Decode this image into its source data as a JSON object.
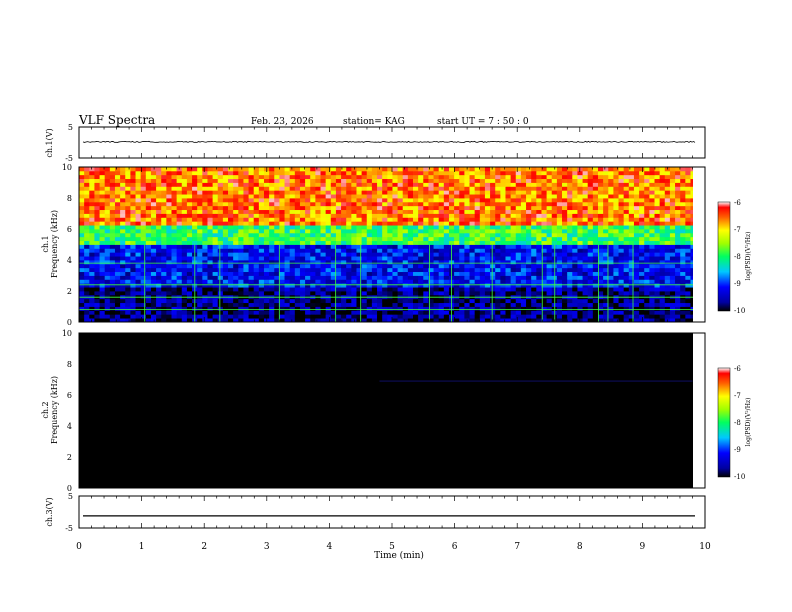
{
  "header": {
    "title": "VLF Spectra",
    "date": "Feb. 23, 2026",
    "station": "station= KAG",
    "start": "start  UT =   7 : 50 : 0"
  },
  "chart_data": [
    {
      "type": "line",
      "name": "ch1-waveform",
      "ylabel": "ch.1(V)",
      "ylim": [
        -5,
        5
      ],
      "yticks": [
        "5",
        "-5"
      ],
      "xlim": [
        0,
        10
      ],
      "series": [
        {
          "name": "ch.1",
          "level": 0.2,
          "noise": 0.35
        }
      ]
    },
    {
      "type": "heatmap",
      "name": "ch1-spectrogram",
      "ylabel": "ch.1",
      "ylabel2": "Frequency  (kHz)",
      "ylim": [
        0,
        10
      ],
      "yticks": [
        "0",
        "2",
        "4",
        "6",
        "8",
        "10"
      ],
      "xlim": [
        0,
        9.85
      ],
      "z_range": [
        -10,
        -6
      ],
      "colorbar": {
        "label": "log(PSD)(V²/Hz)",
        "ticks": [
          "-6",
          "-7",
          "-8",
          "-9",
          "-10"
        ]
      },
      "bands": [
        {
          "from": 0,
          "to": 2.3,
          "level": -9.7
        },
        {
          "from": 2.3,
          "to": 5.0,
          "level": -9.2
        },
        {
          "from": 5.0,
          "to": 6.2,
          "level": -7.9
        },
        {
          "from": 6.2,
          "to": 9.9,
          "level": -6.6
        }
      ],
      "vertical_lines_min": [
        1.05,
        1.85,
        2.25,
        3.2,
        4.1,
        4.5,
        5.6,
        5.95,
        6.6,
        7.4,
        7.6,
        8.3,
        8.45,
        8.85
      ],
      "horizontal_lines_khz": [
        0.8,
        1.6,
        2.4,
        3.8
      ]
    },
    {
      "type": "heatmap",
      "name": "ch2-spectrogram",
      "ylabel": "ch.2",
      "ylabel2": "Frequency  (kHz)",
      "ylim": [
        0,
        10
      ],
      "yticks": [
        "0",
        "2",
        "4",
        "6",
        "8",
        "10"
      ],
      "xlim": [
        0,
        9.85
      ],
      "z_range": [
        -10,
        -6
      ],
      "colorbar": {
        "label": "log(PSD)(V²/Hz)",
        "ticks": [
          "-6",
          "-7",
          "-8",
          "-9",
          "-10"
        ]
      },
      "bands": [
        {
          "from": 0,
          "to": 10,
          "level": -10.5
        }
      ],
      "faint_line_khz": 6.9
    },
    {
      "type": "line",
      "name": "ch3-waveform",
      "ylabel": "ch.3(V)",
      "ylim": [
        -5,
        5
      ],
      "yticks": [
        "5",
        "-5"
      ],
      "xlim": [
        0,
        10
      ],
      "series": [
        {
          "name": "ch.3",
          "level": -1.2,
          "noise": 0.0
        }
      ]
    }
  ],
  "x_axis": {
    "label": "Time  (min)",
    "ticks": [
      "0",
      "1",
      "2",
      "3",
      "4",
      "5",
      "6",
      "7",
      "8",
      "9",
      "10"
    ]
  }
}
